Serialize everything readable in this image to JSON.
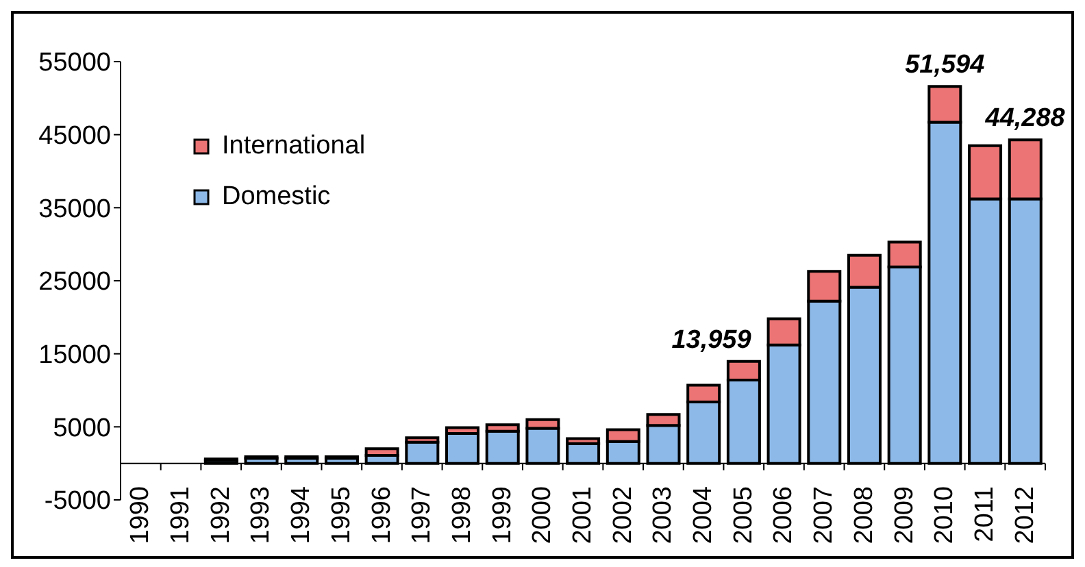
{
  "chart_data": {
    "type": "bar",
    "stacked": true,
    "categories": [
      "1990",
      "1991",
      "1992",
      "1993",
      "1994",
      "1995",
      "1996",
      "1997",
      "1998",
      "1999",
      "2000",
      "2001",
      "2002",
      "2003",
      "2004",
      "2005",
      "2006",
      "2007",
      "2008",
      "2009",
      "2010",
      "2011",
      "2012"
    ],
    "series": [
      {
        "name": "Domestic",
        "color": "#8db9e8",
        "values": [
          0,
          0,
          400,
          700,
          700,
          700,
          1100,
          2900,
          4100,
          4400,
          4800,
          2700,
          3000,
          5200,
          8400,
          11400,
          16200,
          22200,
          24100,
          26900,
          46700,
          36200,
          36200
        ]
      },
      {
        "name": "International",
        "color": "#ec7474",
        "values": [
          0,
          0,
          200,
          200,
          200,
          200,
          900,
          600,
          800,
          900,
          1200,
          700,
          1600,
          1500,
          2300,
          2559,
          3600,
          4100,
          4400,
          3400,
          4894,
          7300,
          8088
        ]
      }
    ],
    "ylim": [
      -5000,
      55000
    ],
    "yticks": [
      -5000,
      5000,
      15000,
      25000,
      35000,
      45000,
      55000
    ],
    "totals": [
      null,
      null,
      null,
      null,
      null,
      null,
      null,
      null,
      null,
      null,
      null,
      null,
      null,
      null,
      null,
      "13,959",
      null,
      null,
      null,
      null,
      "51,594",
      null,
      "44,288"
    ],
    "legend": "top left"
  }
}
